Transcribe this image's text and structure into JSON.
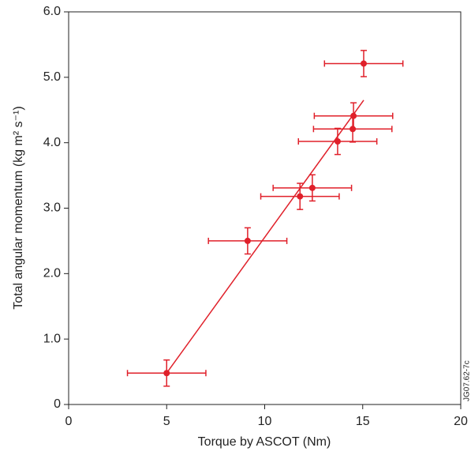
{
  "chart_data": {
    "type": "scatter",
    "x_label": "Torque by ASCOT (Nm)",
    "y_label": "Total angular momentum (kg m² s⁻¹)",
    "watermark": "JG07.62-7c",
    "color": "#e0202a",
    "xlim": [
      0,
      20
    ],
    "xticks": [
      0,
      5,
      10,
      15,
      20
    ],
    "ylim": [
      0,
      6
    ],
    "yticks": [
      0,
      {
        "value": 1,
        "label": "1.0"
      },
      {
        "value": 2,
        "label": "2.0"
      },
      {
        "value": 3,
        "label": "3.0"
      },
      {
        "value": 4,
        "label": "4.0"
      },
      {
        "value": 5,
        "label": "5.0"
      },
      {
        "value": 6,
        "label": "6.0"
      }
    ],
    "x": [
      5.0,
      9.13,
      11.8,
      12.43,
      13.72,
      14.49,
      14.53,
      15.05
    ],
    "values": [
      0.48,
      2.5,
      3.18,
      3.31,
      4.02,
      4.21,
      4.41,
      5.21
    ],
    "xerr": [
      2,
      2,
      2,
      2,
      2,
      2,
      2,
      2
    ],
    "yerr": [
      0.2,
      0.2,
      0.2,
      0.2,
      0.2,
      0.2,
      0.2,
      0.2
    ],
    "fit": {
      "x": [
        5.0,
        15.05
      ],
      "y": [
        0.48,
        4.65
      ]
    }
  }
}
